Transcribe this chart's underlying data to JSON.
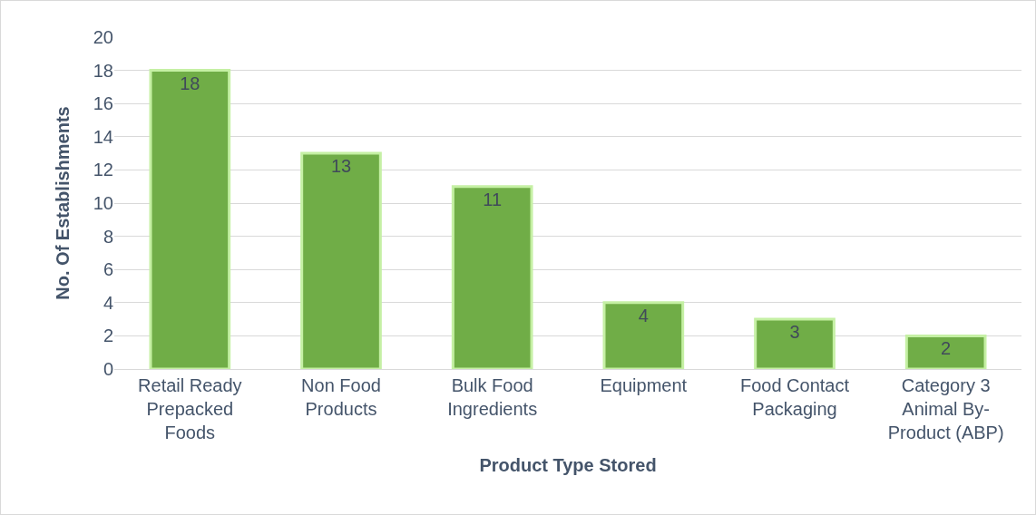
{
  "chart_data": {
    "type": "bar",
    "xlabel": "Product Type Stored",
    "ylabel": "No. Of Establishments",
    "categories": [
      "Retail Ready Prepacked Foods",
      "Non Food Products",
      "Bulk Food Ingredients",
      "Equipment",
      "Food Contact Packaging",
      "Category 3 Animal By-Product (ABP)"
    ],
    "values": [
      18,
      13,
      11,
      4,
      3,
      2
    ],
    "color": "#70ad47",
    "ylim": [
      0,
      20
    ],
    "yticks": [
      0,
      2,
      4,
      6,
      8,
      10,
      12,
      14,
      16,
      18,
      20
    ],
    "grid": "y",
    "data_labels": true
  }
}
